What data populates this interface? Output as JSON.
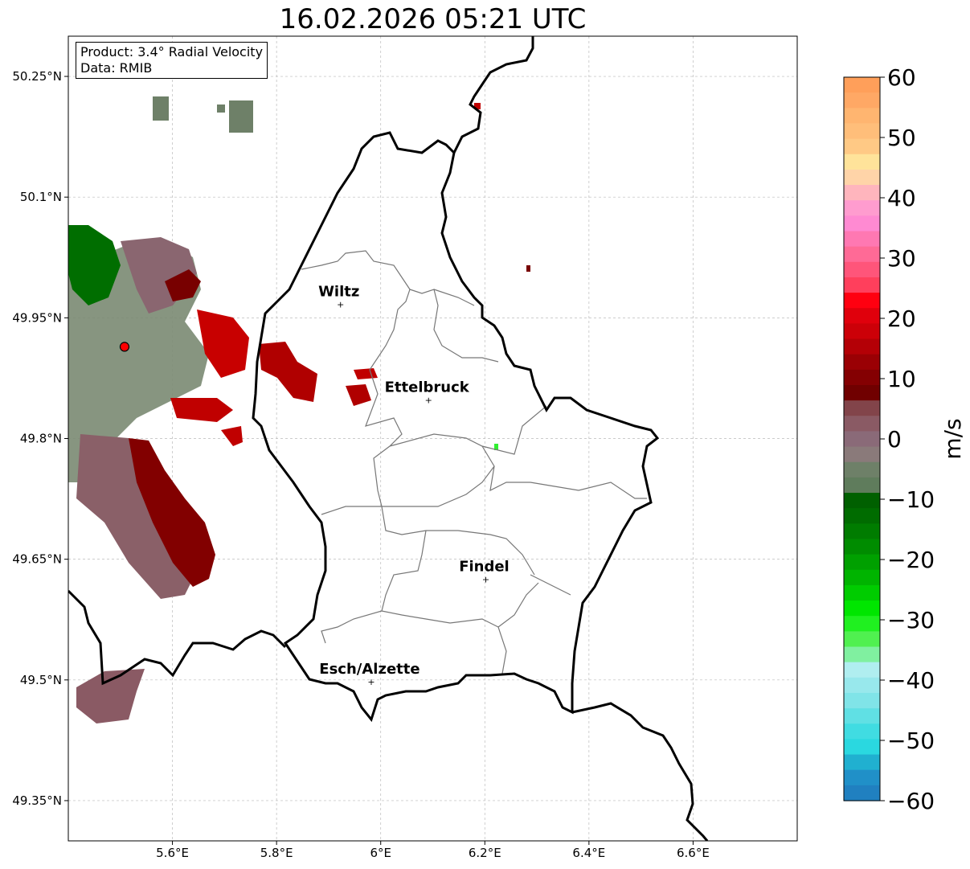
{
  "title": "16.02.2026 05:21 UTC",
  "info_box": {
    "product": "Product: 3.4° Radial Velocity",
    "data": "Data: RMIB"
  },
  "map": {
    "extent": {
      "lon": [
        5.4,
        6.8
      ],
      "lat": [
        49.3,
        50.3
      ]
    },
    "lon_ticks": [
      {
        "v": 5.6,
        "label": "5.6°E"
      },
      {
        "v": 5.8,
        "label": "5.8°E"
      },
      {
        "v": 6.0,
        "label": "6°E"
      },
      {
        "v": 6.2,
        "label": "6.2°E"
      },
      {
        "v": 6.4,
        "label": "6.4°E"
      },
      {
        "v": 6.6,
        "label": "6.6°E"
      }
    ],
    "lat_ticks": [
      {
        "v": 50.25,
        "label": "50.25°N"
      },
      {
        "v": 50.1,
        "label": "50.1°N"
      },
      {
        "v": 49.95,
        "label": "49.95°N"
      },
      {
        "v": 49.8,
        "label": "49.8°N"
      },
      {
        "v": 49.65,
        "label": "49.65°N"
      },
      {
        "v": 49.5,
        "label": "49.5°N"
      },
      {
        "v": 49.35,
        "label": "49.35°N"
      }
    ],
    "cities": [
      {
        "name": "Wiltz",
        "lon": 5.929,
        "lat": 49.967
      },
      {
        "name": "Ettelbruck",
        "lon": 6.098,
        "lat": 49.848
      },
      {
        "name": "Findel",
        "lon": 6.208,
        "lat": 49.625
      },
      {
        "name": "Esch/Alzette",
        "lon": 5.988,
        "lat": 49.498
      }
    ],
    "radar_site": {
      "lon": 5.508,
      "lat": 49.914,
      "color": "#ff0000"
    }
  },
  "colorbar": {
    "label": "m/s",
    "range": [
      -60,
      60
    ],
    "ticks": [
      {
        "v": 60,
        "label": "60"
      },
      {
        "v": 50,
        "label": "50"
      },
      {
        "v": 40,
        "label": "40"
      },
      {
        "v": 30,
        "label": "30"
      },
      {
        "v": 20,
        "label": "20"
      },
      {
        "v": 10,
        "label": "10"
      },
      {
        "v": 0,
        "label": "0"
      },
      {
        "v": -10,
        "label": "−10"
      },
      {
        "v": -20,
        "label": "−20"
      },
      {
        "v": -30,
        "label": "−30"
      },
      {
        "v": -40,
        "label": "−40"
      },
      {
        "v": -50,
        "label": "−50"
      },
      {
        "v": -60,
        "label": "−60"
      }
    ],
    "colors_top_to_bottom": [
      "#ff9f5a",
      "#ffa865",
      "#ffb570",
      "#ffbe7a",
      "#ffc985",
      "#ffe39a",
      "#ffd4a8",
      "#ffb5bd",
      "#ff9ccf",
      "#ff8ad2",
      "#ff78b2",
      "#ff6a96",
      "#ff557a",
      "#ff3f5c",
      "#ff0010",
      "#e0000c",
      "#cc0008",
      "#b40006",
      "#9a0004",
      "#840002",
      "#700000",
      "#82444a",
      "#8a5a64",
      "#8a6a78",
      "#8a7a7a",
      "#6e8068",
      "#5f7c5c",
      "#006000",
      "#006c00",
      "#007c00",
      "#008c00",
      "#00a000",
      "#00b400",
      "#00cc00",
      "#00e600",
      "#20f020",
      "#50f050",
      "#80f0a0",
      "#b0eef0",
      "#98e8ec",
      "#80e4e8",
      "#60e0e4",
      "#40dce2",
      "#2ad8e0",
      "#20b0d0",
      "#2090c8",
      "#2080c0"
    ]
  }
}
